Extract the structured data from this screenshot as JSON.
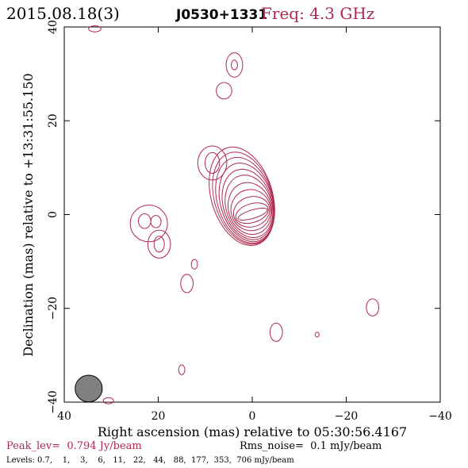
{
  "header": {
    "date": "2015.08.18(3)",
    "source": "J0530+1331",
    "freq": "Freq: 4.3 GHz"
  },
  "footer": {
    "peak": "Peak_lev=  0.794 Jy/beam",
    "rms": "Rms_noise=  0.1 mJy/beam",
    "levels": "Levels: 0.7,    1,    3,    6,   11,   22,   44,   88,  177,  353,  706 mJy/beam"
  },
  "colors": {
    "contour": "#b0284e",
    "axis": "#000000",
    "beam_fill": "#808080"
  },
  "chart_data": {
    "type": "contour",
    "xlabel": "Right ascension (mas) relative to 05:30:56.4167",
    "ylabel": "Declination (mas) relative to +13:31:55.150",
    "xlim": [
      40,
      -40
    ],
    "ylim": [
      -40,
      40
    ],
    "x_ticks": [
      {
        "value": 40,
        "label": "40"
      },
      {
        "value": 20,
        "label": "20"
      },
      {
        "value": 0,
        "label": "0"
      },
      {
        "value": -20,
        "label": "−20"
      },
      {
        "value": -40,
        "label": "−40"
      }
    ],
    "y_ticks": [
      {
        "value": -40,
        "label": "−40"
      },
      {
        "value": -20,
        "label": "−20"
      },
      {
        "value": 0,
        "label": "0"
      },
      {
        "value": 20,
        "label": "20"
      },
      {
        "value": 40,
        "label": "40"
      }
    ],
    "levels_mJy": [
      0.7,
      1,
      3,
      6,
      11,
      22,
      44,
      88,
      177,
      353,
      706
    ],
    "core": {
      "x": 0,
      "y": 0,
      "rings": [
        {
          "cx": 2.2,
          "cy": 3.9,
          "rx": 1.0,
          "ry": 10.8,
          "angle": -17
        },
        {
          "cx": 1.85,
          "cy": 3.5,
          "rx": 0.95,
          "ry": 10.1,
          "angle": -17
        },
        {
          "cx": 1.55,
          "cy": 3.05,
          "rx": 0.9,
          "ry": 9.4,
          "angle": -17
        },
        {
          "cx": 1.2,
          "cy": 2.6,
          "rx": 0.85,
          "ry": 8.6,
          "angle": -17
        },
        {
          "cx": 0.95,
          "cy": 2.15,
          "rx": 0.8,
          "ry": 7.7,
          "angle": -17
        },
        {
          "cx": 0.7,
          "cy": 1.75,
          "rx": 0.75,
          "ry": 6.8,
          "angle": -17
        },
        {
          "cx": 0.5,
          "cy": 1.3,
          "rx": 0.7,
          "ry": 5.6,
          "angle": -17
        },
        {
          "cx": 0.3,
          "cy": 0.95,
          "rx": 0.65,
          "ry": 4.4,
          "angle": -17
        },
        {
          "cx": 0.15,
          "cy": 0.6,
          "rx": 0.6,
          "ry": 3.2,
          "angle": -17
        },
        {
          "cx": 0.05,
          "cy": 0.3,
          "rx": 0.55,
          "ry": 2.0,
          "angle": -17
        },
        {
          "cx": -0.1,
          "cy": 0.1,
          "rx": 0.5,
          "ry": 0.9,
          "angle": -17
        }
      ]
    },
    "components": [
      {
        "x": 33.5,
        "y": 39.6,
        "rx": 0.6,
        "ry": 0.5
      },
      {
        "x": 3.8,
        "y": 31.9,
        "rx": 0.8,
        "ry": 2.0
      },
      {
        "x": 3.8,
        "y": 31.9,
        "rx": 0.3,
        "ry": 0.8
      },
      {
        "x": 6.0,
        "y": 26.4,
        "rx": 0.75,
        "ry": 1.35
      },
      {
        "x": 8.5,
        "y": 11.0,
        "rx": 1.4,
        "ry": 2.8
      },
      {
        "x": 8.5,
        "y": 11.0,
        "rx": 0.7,
        "ry": 1.7
      },
      {
        "x": 22.0,
        "y": -1.9,
        "rx": 1.8,
        "ry": 3.0
      },
      {
        "x": 22.9,
        "y": -1.4,
        "rx": 0.6,
        "ry": 1.2
      },
      {
        "x": 20.5,
        "y": -1.5,
        "rx": 0.5,
        "ry": 1.0
      },
      {
        "x": 19.8,
        "y": -6.3,
        "rx": 1.1,
        "ry": 2.3
      },
      {
        "x": 19.8,
        "y": -6.3,
        "rx": 0.5,
        "ry": 1.3
      },
      {
        "x": 12.3,
        "y": -10.6,
        "rx": 0.3,
        "ry": 0.8
      },
      {
        "x": 13.9,
        "y": -14.7,
        "rx": 0.6,
        "ry": 1.5
      },
      {
        "x": -25.6,
        "y": -19.8,
        "rx": 0.6,
        "ry": 1.4
      },
      {
        "x": -5.1,
        "y": -25.1,
        "rx": 0.6,
        "ry": 1.5
      },
      {
        "x": -13.8,
        "y": -25.6,
        "rx": 0.2,
        "ry": 0.4
      },
      {
        "x": 15.0,
        "y": -33.1,
        "rx": 0.3,
        "ry": 0.8
      },
      {
        "x": 30.6,
        "y": -39.7,
        "rx": 0.5,
        "ry": 0.5
      }
    ],
    "beam": {
      "x": 34.8,
      "y": -37.1,
      "major_mas": 3.8,
      "minor_mas": 1.8,
      "pa_deg": 0
    }
  }
}
